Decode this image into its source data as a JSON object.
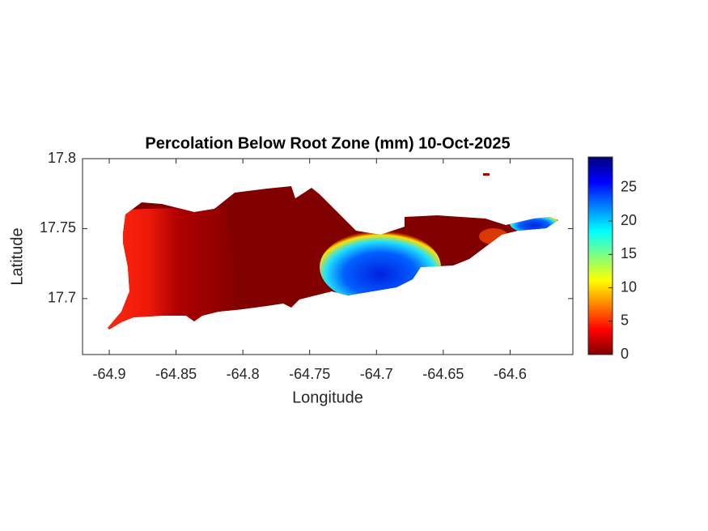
{
  "chart_data": {
    "type": "heatmap",
    "title": "Percolation Below Root Zone (mm) 10-Oct-2025",
    "xlabel": "Longitude",
    "ylabel": "Latitude",
    "xlim": [
      -64.92,
      -64.553
    ],
    "ylim": [
      17.66,
      17.8
    ],
    "xticks": [
      -64.9,
      -64.85,
      -64.8,
      -64.75,
      -64.7,
      -64.65,
      -64.6
    ],
    "yticks": [
      17.7,
      17.75,
      17.8
    ],
    "colormap": "jet",
    "clim": [
      0,
      29.6
    ],
    "cticks": [
      0,
      5,
      10,
      15,
      20,
      25
    ]
  }
}
